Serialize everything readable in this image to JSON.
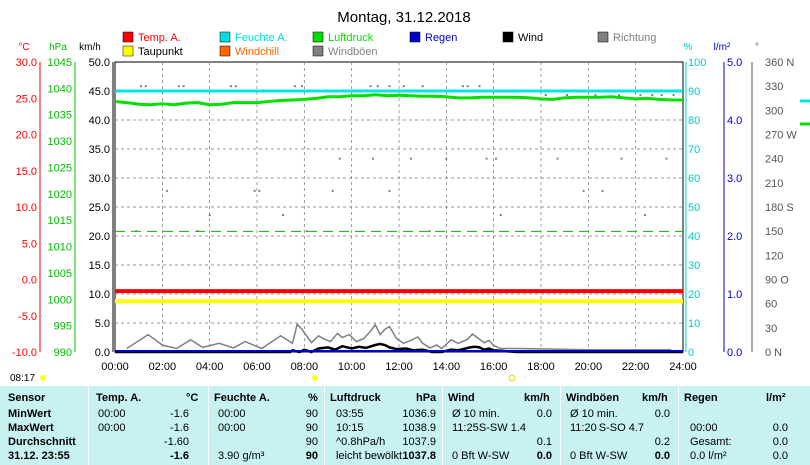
{
  "chart_data": {
    "type": "line",
    "title": "Montag, 31.12.2018",
    "x_ticks": [
      "00:00",
      "02:00",
      "04:00",
      "06:00",
      "08:00",
      "10:00",
      "12:00",
      "14:00",
      "16:00",
      "18:00",
      "20:00",
      "22:00",
      "24:00"
    ],
    "axes": [
      {
        "unit": "°C",
        "color": "#ff0000",
        "min": -10,
        "max": 30,
        "ticks": [
          "30.0",
          "25.0",
          "20.0",
          "15.0",
          "10.0",
          "5.0",
          "0.0",
          "-5.0",
          "-10.0"
        ]
      },
      {
        "unit": "hPa",
        "color": "#00bb00",
        "min": 990,
        "max": 1045,
        "ticks": [
          "1045",
          "1040",
          "1035",
          "1030",
          "1025",
          "1020",
          "1015",
          "1010",
          "1005",
          "1000",
          "995",
          "990"
        ]
      },
      {
        "unit": "km/h",
        "color": "#000000",
        "min": 0,
        "max": 50,
        "ticks": [
          "50.0",
          "45.0",
          "40.0",
          "35.0",
          "30.0",
          "25.0",
          "20.0",
          "15.0",
          "10.0",
          "5.0",
          "0.0"
        ]
      },
      {
        "unit": "%",
        "color": "#00cccc",
        "min": 0,
        "max": 100,
        "ticks": [
          "100",
          "90",
          "80",
          "70",
          "60",
          "50",
          "40",
          "30",
          "20",
          "10",
          "0"
        ]
      },
      {
        "unit": "l/m²",
        "color": "#0000cc",
        "min": 0,
        "max": 5,
        "ticks": [
          "5.0",
          "4.0",
          "3.0",
          "2.0",
          "1.0",
          "0.0"
        ]
      },
      {
        "unit": "°",
        "color": "#555555",
        "min": 0,
        "max": 360,
        "ticks": [
          "360 N",
          "330",
          "300",
          "270 W",
          "240",
          "210",
          "180 S",
          "150",
          "120",
          "90 O",
          "60",
          "30",
          "0 N"
        ]
      }
    ],
    "legend": [
      {
        "label": "Temp. A.",
        "color": "#ff0000"
      },
      {
        "label": "Feuchte A.",
        "color": "#00dddd"
      },
      {
        "label": "Luftdruck",
        "color": "#00dd00"
      },
      {
        "label": "Regen",
        "color": "#0000cc"
      },
      {
        "label": "Wind",
        "color": "#000000"
      },
      {
        "label": "Richtung",
        "color": "#808080"
      },
      {
        "label": "Taupunkt",
        "color": "#ffff00"
      },
      {
        "label": "Windchill",
        "color": "#ff6600"
      },
      {
        "label": "Windböen",
        "color": "#808080"
      }
    ],
    "series": [
      {
        "name": "Temp. A.",
        "axis": 0,
        "color": "#ff0000",
        "x": [
          0,
          24
        ],
        "y": [
          -1.6,
          -1.6
        ]
      },
      {
        "name": "Taupunkt",
        "axis": 0,
        "color": "#ffff00",
        "x": [
          0,
          24
        ],
        "y": [
          -3.0,
          -3.0
        ]
      },
      {
        "name": "Feuchte A.",
        "axis": 3,
        "color": "#00e5e5",
        "x": [
          0,
          24
        ],
        "y": [
          90,
          90
        ]
      },
      {
        "name": "Luftdruck",
        "axis": 1,
        "color": "#00e000",
        "x": [
          0,
          0.5,
          1,
          1.5,
          2,
          2.5,
          3,
          3.5,
          4,
          4.5,
          5,
          5.5,
          6,
          6.5,
          7,
          7.5,
          8,
          8.5,
          9,
          9.5,
          10,
          10.5,
          11,
          11.5,
          12,
          12.5,
          13,
          13.5,
          14,
          14.5,
          15,
          15.5,
          16,
          16.5,
          17,
          17.5,
          18,
          18.5,
          19,
          19.5,
          20,
          20.5,
          21,
          21.5,
          22,
          22.5,
          23,
          23.5,
          24
        ],
        "y": [
          1037.5,
          1037.3,
          1037.0,
          1036.9,
          1037.1,
          1036.9,
          1037.2,
          1037.3,
          1036.9,
          1037.0,
          1037.3,
          1037.3,
          1037.3,
          1037.5,
          1037.7,
          1037.8,
          1037.9,
          1038.1,
          1038.4,
          1038.4,
          1038.6,
          1038.6,
          1038.8,
          1038.6,
          1038.7,
          1038.6,
          1038.5,
          1038.5,
          1038.4,
          1038.2,
          1038.2,
          1038.3,
          1038.3,
          1038.3,
          1038.3,
          1038.2,
          1038.0,
          1037.9,
          1038.2,
          1038.3,
          1038.3,
          1038.3,
          1038.4,
          1038.2,
          1038.0,
          1038.1,
          1037.9,
          1037.8,
          1037.8
        ]
      },
      {
        "name": "Wind",
        "axis": 2,
        "color": "#000000",
        "x": [
          0,
          6.5,
          7.4,
          7.5,
          7.8,
          8.0,
          8.3,
          8.6,
          9.0,
          9.3,
          9.6,
          10.0,
          10.3,
          10.6,
          11.0,
          11.2,
          11.4,
          11.6,
          11.9,
          12.3,
          12.6,
          13.0,
          13.4,
          13.8,
          14.2,
          14.5,
          15.0,
          15.2,
          15.4,
          15.6,
          15.8,
          16.0,
          16.3,
          16.6,
          17.0,
          24
        ],
        "y": [
          0,
          0,
          0,
          0.3,
          0,
          0.4,
          0,
          0.6,
          0.8,
          0.4,
          1.0,
          0.6,
          0.9,
          0.7,
          1.2,
          1.4,
          1.2,
          0.8,
          0.5,
          0.6,
          0.3,
          0.4,
          0,
          0,
          0.4,
          0.3,
          0.8,
          0.9,
          0.8,
          0.4,
          0.6,
          0.3,
          0.2,
          0.1,
          0,
          0
        ]
      },
      {
        "name": "Windböen",
        "axis": 2,
        "color": "#808080",
        "x": [
          0.5,
          1.4,
          2.0,
          2.6,
          3.2,
          3.7,
          4.4,
          5.0,
          5.5,
          6.2,
          7.0,
          7.5,
          7.7,
          7.9,
          8.3,
          8.6,
          8.8,
          9.1,
          9.4,
          9.6,
          9.9,
          10.2,
          10.5,
          10.8,
          11.0,
          11.2,
          11.4,
          11.6,
          11.9,
          12.2,
          12.5,
          12.8,
          13.0,
          13.3,
          13.6,
          13.8,
          14.2,
          14.5,
          14.9,
          15.1,
          15.3,
          15.6,
          15.8,
          16.0,
          16.3,
          17.0,
          20.0,
          23.5
        ],
        "y": [
          0.6,
          3.0,
          1.2,
          0.6,
          2.1,
          0.8,
          1.5,
          0.7,
          1.8,
          0.6,
          2.8,
          1.5,
          4.8,
          3.9,
          1.6,
          2.8,
          2.3,
          1.8,
          3.2,
          2.5,
          3.0,
          1.8,
          2.3,
          3.6,
          4.7,
          3.0,
          3.9,
          4.4,
          2.3,
          1.5,
          2.0,
          2.6,
          1.5,
          0.7,
          1.2,
          0.6,
          2.1,
          1.5,
          2.2,
          3.1,
          2.5,
          1.6,
          2.0,
          1.1,
          0.6,
          0.6,
          0.4,
          0.4
        ]
      },
      {
        "name": "Richtung",
        "axis": 5,
        "color": "#808080",
        "style": "scatter",
        "x": [
          1.1,
          1.3,
          2.7,
          2.9,
          4.9,
          5.1,
          7.6,
          7.9,
          10.8,
          11.1,
          11.6,
          12.2,
          13.0,
          14.7,
          14.9,
          15.4,
          18.2,
          19.1,
          20.3,
          21.3,
          22.2,
          22.7,
          23.1,
          23.6,
          9.5,
          10.9,
          12.5,
          14.0,
          16.1,
          18.7,
          21.4,
          23.3,
          15.7,
          9.2,
          6.1,
          2.2,
          5.9,
          11.6,
          19.8,
          20.6,
          4.0,
          7.1,
          16.3,
          22.4,
          0.9,
          3.5,
          8.1,
          13.3
        ],
        "y": [
          330,
          330,
          330,
          330,
          330,
          330,
          330,
          330,
          330,
          330,
          330,
          330,
          330,
          330,
          330,
          330,
          319,
          319,
          319,
          319,
          319,
          319,
          319,
          319,
          240,
          240,
          240,
          240,
          240,
          240,
          240,
          240,
          240,
          200,
          200,
          200,
          200,
          200,
          200,
          200,
          170,
          170,
          170,
          170,
          150,
          150,
          150,
          150
        ]
      }
    ]
  },
  "stats": {
    "headers": [
      "Sensor",
      "Temp. A.",
      "°C",
      "Feuchte A.",
      "%",
      "Luftdruck",
      "hPa",
      "Wind",
      "km/h",
      "Windböen",
      "km/h",
      "Regen",
      "l/m²"
    ],
    "rows": [
      {
        "label": "MinWert",
        "c1": "00:00",
        "c2": "-1.6",
        "c3": "00:00",
        "c4": "90",
        "c5": "03:55",
        "c6": "1036.9",
        "c7": "Ø 10 min.",
        "c8": "0.0",
        "c9": "Ø 10 min.",
        "c10": "0.0",
        "c11": "",
        "c12": ""
      },
      {
        "label": "MaxWert",
        "c1": "00:00",
        "c2": "-1.6",
        "c3": "00:00",
        "c4": "90",
        "c5": "10:15",
        "c6": "1038.9",
        "c7": "11:25",
        "c7b": "S-SW 1.4",
        "c8": "",
        "c9": "11:20",
        "c9b": "S-SO 4.7",
        "c10": "",
        "c11": "00:00",
        "c12": "0.0"
      },
      {
        "label": "Durchschnitt",
        "c1": "",
        "c2": "-1.60",
        "c3": "",
        "c4": "90",
        "c5": "^0.8hPa/h",
        "c6": "1037.9",
        "c7": "",
        "c8": "0.1",
        "c9": "",
        "c10": "0.2",
        "c11": "Gesamt:",
        "c12": "0.0"
      },
      {
        "label": "31.12. 23:55",
        "c1": "",
        "c2": "-1.6",
        "c3": "3.90 g/m³",
        "c4": "90",
        "c5": "leicht bewölkt",
        "c6": "1037.8",
        "c7": "0 Bft W-SW",
        "c8": "0.0",
        "c9": "0 Bft W-SW",
        "c10": "0.0",
        "c11": "0.0 l/m²",
        "c12": "0.0"
      }
    ]
  },
  "sunrise": "08:17"
}
